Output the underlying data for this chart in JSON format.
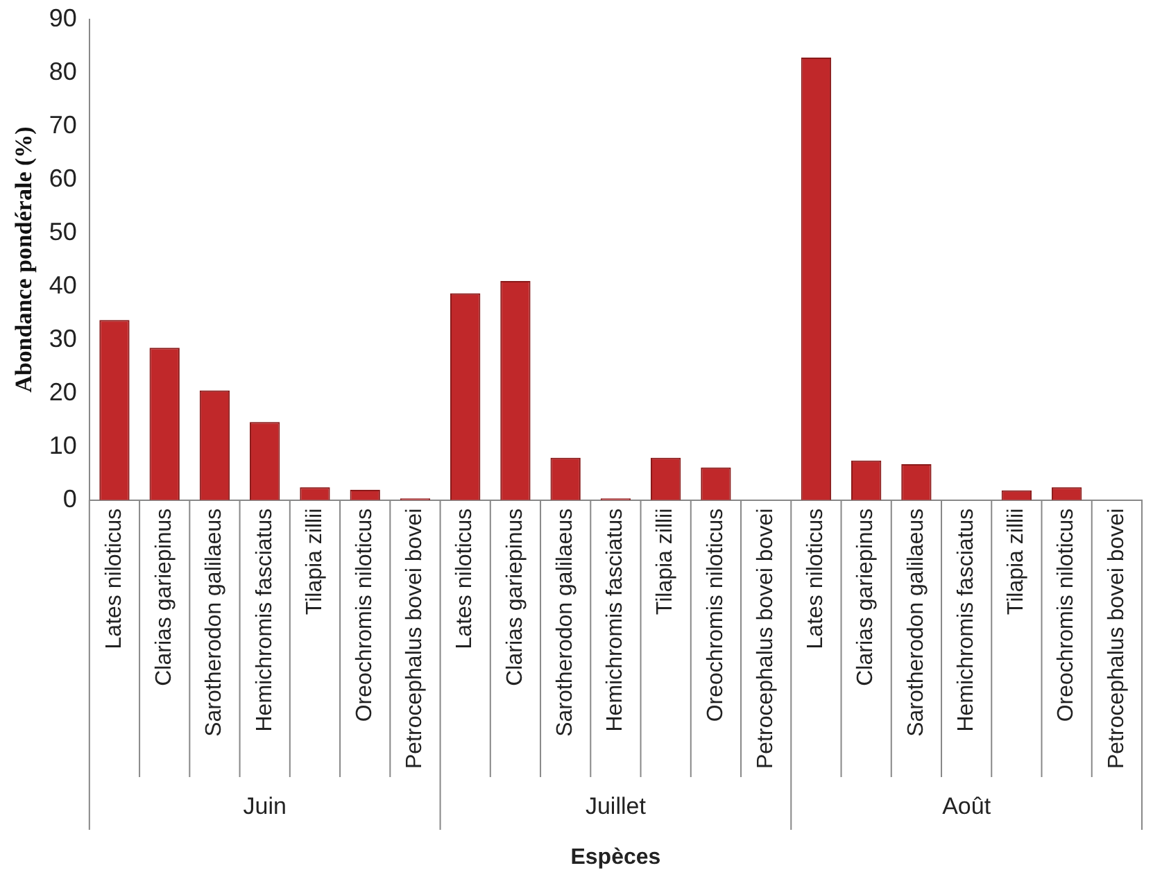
{
  "chart_data": {
    "type": "bar",
    "xlabel": "Espèces",
    "ylabel": "Abondance pondérale (%)",
    "categories": [
      "Lates niloticus",
      "Clarias gariepinus",
      "Sarotherodon galilaeus",
      "Hemichromis fasciatus",
      "Tilapia zillii",
      "Oreochromis niloticus",
      "Petrocephalus bovei bovei",
      "Lates niloticus",
      "Clarias gariepinus",
      "Sarotherodon galilaeus",
      "Hemichromis fasciatus",
      "Tilapia zillii",
      "Oreochromis niloticus",
      "Petrocephalus bovei bovei",
      "Lates niloticus",
      "Clarias gariepinus",
      "Sarotherodon galilaeus",
      "Hemichromis fasciatus",
      "Tilapia zillii",
      "Oreochromis niloticus",
      "Petrocephalus bovei bovei"
    ],
    "values": [
      33.7,
      28.5,
      20.5,
      14.6,
      2.4,
      1.9,
      0.3,
      38.7,
      41,
      7.9,
      0.3,
      7.9,
      6.1,
      0,
      82.8,
      7.4,
      6.7,
      0,
      1.8,
      2.4,
      0
    ],
    "color": "#c0282a",
    "ylim": [
      0,
      90
    ],
    "yticks": [
      0,
      10,
      20,
      30,
      40,
      50,
      60,
      70,
      80,
      90
    ],
    "annotations": [
      "Juin",
      "Juillet",
      "Août"
    ],
    "grid": false,
    "legend": false
  }
}
